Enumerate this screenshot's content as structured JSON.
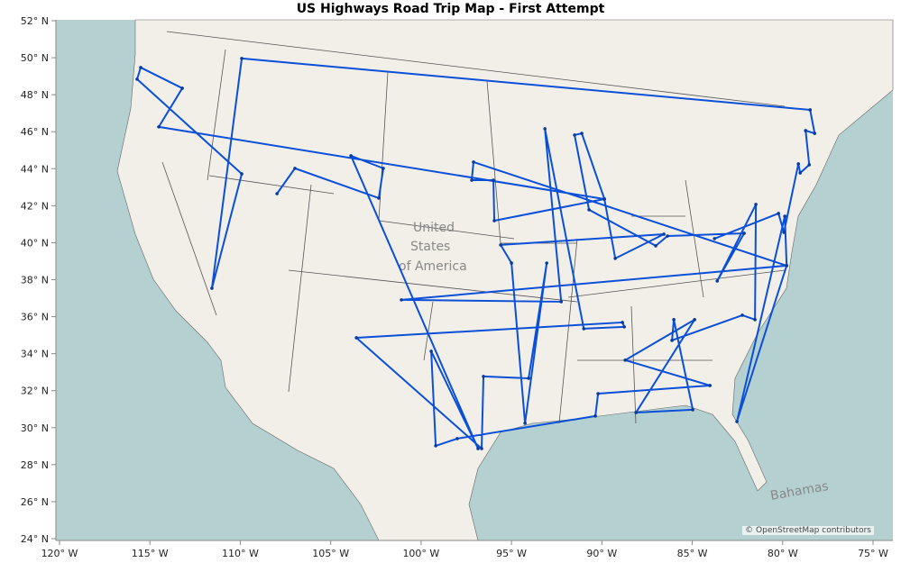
{
  "title": "US Highways Road Trip Map - First Attempt",
  "attribution": "© OpenStreetMap contributors",
  "map_labels": {
    "country": [
      "United",
      "States",
      "of America"
    ],
    "bahamas": "Bahamas"
  },
  "colors": {
    "route": "#0a4fd8",
    "ocean": "#b5d0d0",
    "land": "#f2efe9",
    "borders": "#555555"
  },
  "chart_data": {
    "type": "line",
    "title": "US Highways Road Trip Map - First Attempt",
    "xlim": [
      -120,
      -75
    ],
    "ylim": [
      24,
      52
    ],
    "x_ticks": [
      "120° W",
      "115° W",
      "110° W",
      "105° W",
      "100° W",
      "95° W",
      "90° W",
      "85° W",
      "80° W",
      "75° W"
    ],
    "y_ticks": [
      "52° N",
      "50° N",
      "48° N",
      "46° N",
      "44° N",
      "42° N",
      "40° N",
      "38° N",
      "36° N",
      "34° N",
      "32° N",
      "30° N",
      "28° N",
      "26° N",
      "24° N"
    ],
    "route": [
      [
        -107.97,
        42.65
      ],
      [
        -106.98,
        44.02
      ],
      [
        -102.34,
        42.41
      ],
      [
        -102.09,
        44.02
      ],
      [
        -103.88,
        44.7
      ],
      [
        -96.85,
        28.87
      ],
      [
        -99.44,
        34.13
      ],
      [
        -99.19,
        29.02
      ],
      [
        -98.0,
        29.41
      ],
      [
        -90.36,
        30.63
      ],
      [
        -90.21,
        31.84
      ],
      [
        -84.02,
        32.28
      ],
      [
        -88.71,
        33.65
      ],
      [
        -84.87,
        35.84
      ],
      [
        -88.11,
        30.82
      ],
      [
        -84.97,
        30.97
      ],
      [
        -86.02,
        35.84
      ],
      [
        -86.12,
        34.72
      ],
      [
        -82.23,
        36.08
      ],
      [
        -81.53,
        35.84
      ],
      [
        -81.48,
        42.07
      ],
      [
        -83.62,
        37.93
      ],
      [
        -82.13,
        40.51
      ],
      [
        -86.37,
        40.36
      ],
      [
        -87.02,
        39.83
      ],
      [
        -90.71,
        41.78
      ],
      [
        -91.51,
        45.82
      ],
      [
        -91.11,
        45.91
      ],
      [
        -89.86,
        42.36
      ],
      [
        -89.26,
        39.15
      ],
      [
        -86.57,
        40.46
      ],
      [
        -95.6,
        39.88
      ],
      [
        -95.0,
        38.9
      ],
      [
        -94.25,
        30.24
      ],
      [
        -93.05,
        38.9
      ],
      [
        -94.05,
        32.67
      ],
      [
        -96.55,
        32.77
      ],
      [
        -96.65,
        28.87
      ],
      [
        -103.58,
        34.86
      ],
      [
        -88.86,
        35.69
      ],
      [
        -88.76,
        35.45
      ],
      [
        -91.0,
        35.35
      ],
      [
        -93.15,
        46.16
      ],
      [
        -92.25,
        36.81
      ],
      [
        -101.09,
        36.91
      ],
      [
        -79.78,
        38.76
      ],
      [
        -82.53,
        30.33
      ],
      [
        -79.88,
        41.43
      ],
      [
        -79.78,
        38.76
      ],
      [
        -97.1,
        44.36
      ],
      [
        -97.2,
        43.38
      ],
      [
        -96.0,
        43.38
      ],
      [
        -95.95,
        41.19
      ],
      [
        -89.86,
        42.36
      ],
      [
        -114.51,
        46.26
      ],
      [
        -113.21,
        48.35
      ],
      [
        -115.51,
        49.47
      ],
      [
        -115.71,
        48.84
      ],
      [
        -109.92,
        43.72
      ],
      [
        -111.57,
        37.54
      ],
      [
        -109.92,
        49.96
      ],
      [
        -78.48,
        47.18
      ],
      [
        -78.23,
        45.91
      ],
      [
        -78.73,
        46.06
      ],
      [
        -78.53,
        44.21
      ],
      [
        -79.03,
        43.77
      ],
      [
        -79.13,
        44.26
      ],
      [
        -79.93,
        40.56
      ],
      [
        -80.23,
        41.58
      ],
      [
        -83.77,
        40.22
      ]
    ]
  }
}
